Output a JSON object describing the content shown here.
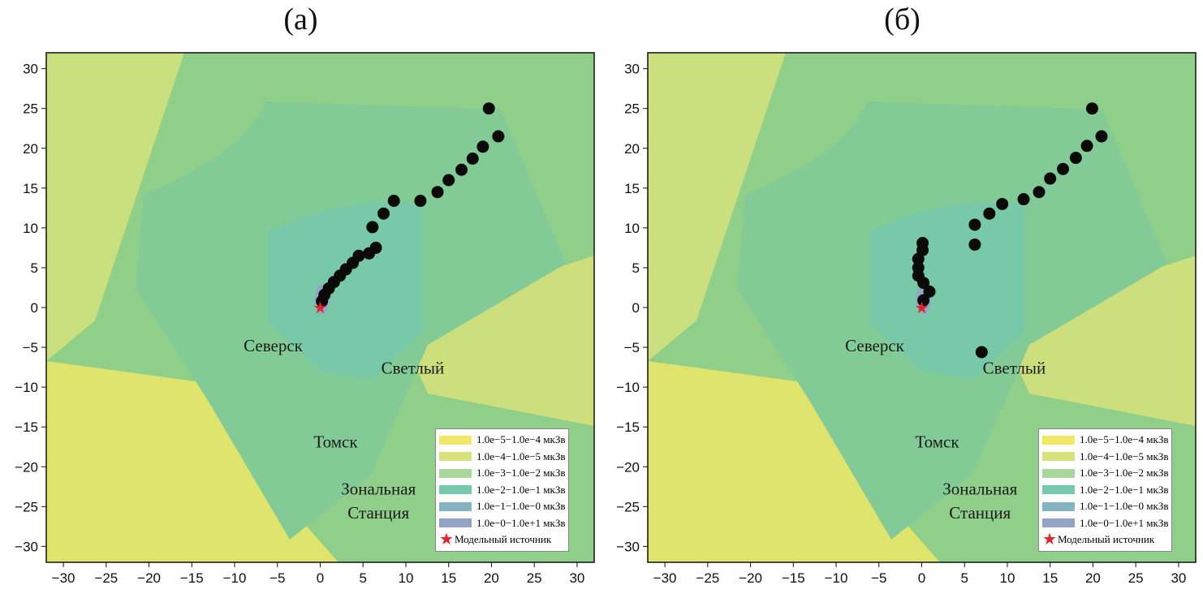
{
  "panels": [
    {
      "title": "(а)",
      "points": [
        [
          19.7,
          25
        ],
        [
          20.8,
          21.5
        ],
        [
          19,
          20.2
        ],
        [
          17.8,
          18.7
        ],
        [
          16.5,
          17.3
        ],
        [
          15,
          16
        ],
        [
          13.7,
          14.5
        ],
        [
          11.7,
          13.4
        ],
        [
          8.6,
          13.4
        ],
        [
          7.4,
          11.8
        ],
        [
          6.1,
          10.1
        ],
        [
          6.5,
          7.5
        ],
        [
          5.7,
          6.8
        ],
        [
          4.5,
          6.5
        ],
        [
          3.8,
          5.6
        ],
        [
          3.0,
          4.8
        ],
        [
          2.3,
          4.0
        ],
        [
          1.6,
          3.2
        ],
        [
          1.0,
          2.4
        ],
        [
          0.5,
          1.6
        ],
        [
          0.2,
          0.8
        ]
      ]
    },
    {
      "title": "(б)",
      "points": [
        [
          19.9,
          25
        ],
        [
          21,
          21.5
        ],
        [
          19.3,
          20.3
        ],
        [
          18,
          18.8
        ],
        [
          16.5,
          17.4
        ],
        [
          15,
          16.2
        ],
        [
          13.7,
          14.5
        ],
        [
          11.9,
          13.6
        ],
        [
          9.4,
          13
        ],
        [
          7.9,
          11.8
        ],
        [
          6.2,
          10.4
        ],
        [
          6.2,
          7.9
        ],
        [
          0.1,
          8.1
        ],
        [
          0.1,
          7.2
        ],
        [
          -0.4,
          6.1
        ],
        [
          -0.4,
          5
        ],
        [
          -0.4,
          4
        ],
        [
          0.2,
          3.1
        ],
        [
          0.9,
          2
        ],
        [
          0.2,
          0.9
        ],
        [
          7,
          -5.6
        ]
      ]
    }
  ],
  "source": [
    0,
    0
  ],
  "axis": {
    "xlim": [
      -32,
      32
    ],
    "ylim": [
      -32,
      32
    ],
    "ticks": [
      -30,
      -25,
      -20,
      -15,
      -10,
      -5,
      0,
      5,
      10,
      15,
      20,
      25,
      30
    ]
  },
  "towns": [
    {
      "name": "Северск",
      "x": -5.5,
      "y": -5.5
    },
    {
      "name": "Светлый",
      "x": 10.8,
      "y": -8.3
    },
    {
      "name": "Томск",
      "x": 1.8,
      "y": -17.6
    },
    {
      "name": "Зональная",
      "x": 6.8,
      "y": -23.5
    },
    {
      "name": "Станция",
      "x": 6.8,
      "y": -26.5
    }
  ],
  "legend": {
    "items": [
      {
        "label": "1.0e−5−1.0e−4 мкЗв",
        "color": "#f3e864"
      },
      {
        "label": "1.0e−4−1.0e−5 мкЗв",
        "color": "#d8e27a"
      },
      {
        "label": "1.0e−3−1.0e−2 мкЗв",
        "color": "#a6d89c"
      },
      {
        "label": "1.0e−2−1.0e−1 мкЗв",
        "color": "#76c9ac"
      },
      {
        "label": "1.0e−1−1.0e−0 мкЗв",
        "color": "#86b3c4"
      },
      {
        "label": "1.0e−0−1.0e+1 мкЗв",
        "color": "#93a3c8"
      }
    ],
    "source_label": "Модельный источник"
  }
}
